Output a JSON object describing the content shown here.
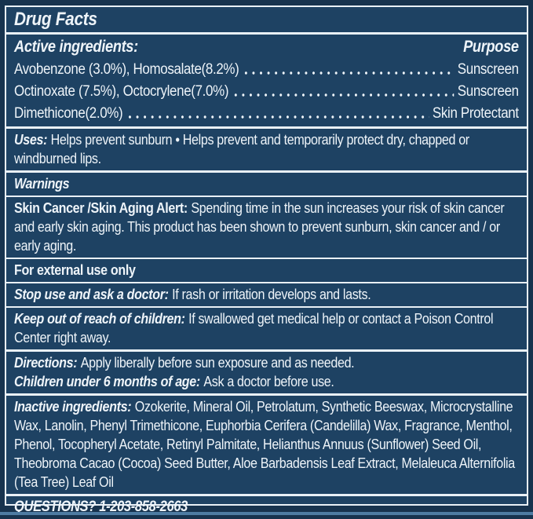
{
  "label": {
    "title": "Drug Facts",
    "active": {
      "heading": "Active ingredients:",
      "purpose_heading": "Purpose",
      "rows": [
        {
          "ingredient": "Avobenzone (3.0%), Homosalate(8.2%)",
          "purpose": "Sunscreen"
        },
        {
          "ingredient": "Octinoxate (7.5%), Octocrylene(7.0%)",
          "purpose": "Sunscreen"
        },
        {
          "ingredient": "Dimethicone(2.0%)",
          "purpose": "Skin Protectant"
        }
      ]
    },
    "uses": {
      "lead": "Uses:",
      "text": "Helps prevent sunburn • Helps prevent and temporarily protect dry, chapped or windburned lips."
    },
    "warnings_heading": "Warnings",
    "skin_alert": {
      "lead": "Skin Cancer /Skin Aging Alert:",
      "text": "Spending time in the sun increases your risk of skin cancer and early skin aging. This product has been shown to prevent sunburn, skin cancer and / or early aging."
    },
    "external_use": "For external use only",
    "stop_use": {
      "lead": "Stop use and ask a doctor:",
      "text": "If rash or irritation develops and lasts."
    },
    "keep_out": {
      "lead": "Keep out of reach of children:",
      "text": "If swallowed get medical help or contact a Poison Control Center right away."
    },
    "directions": {
      "lead": "Directions:",
      "text": "Apply liberally before sun exposure and as needed."
    },
    "children": {
      "lead": "Children under 6 months of age:",
      "text": "Ask a doctor before use."
    },
    "inactive": {
      "lead": "Inactive ingredients:",
      "text": "Ozokerite, Mineral Oil, Petrolatum, Synthetic Beeswax, Microcrystalline Wax, Lanolin, Phenyl Trimethicone, Euphorbia Cerifera (Candelilla) Wax, Fragrance, Menthol, Phenol, Tocopheryl Acetate, Retinyl Palmitate, Helianthus Annuus (Sunflower) Seed Oil, Theobroma Cacao (Cocoa) Seed Butter, Aloe Barbadensis Leaf Extract, Melaleuca Alternifolia (Tea Tree) Leaf Oil"
    },
    "questions": "QUESTIONS? 1-203-858-2663",
    "colors": {
      "panel_background": "#1e4263",
      "outer_margin": "#17334e",
      "rule_lines": "#e9f0f6",
      "text": "#eef4f9",
      "bottom_strip": "#4e7ca3"
    }
  }
}
